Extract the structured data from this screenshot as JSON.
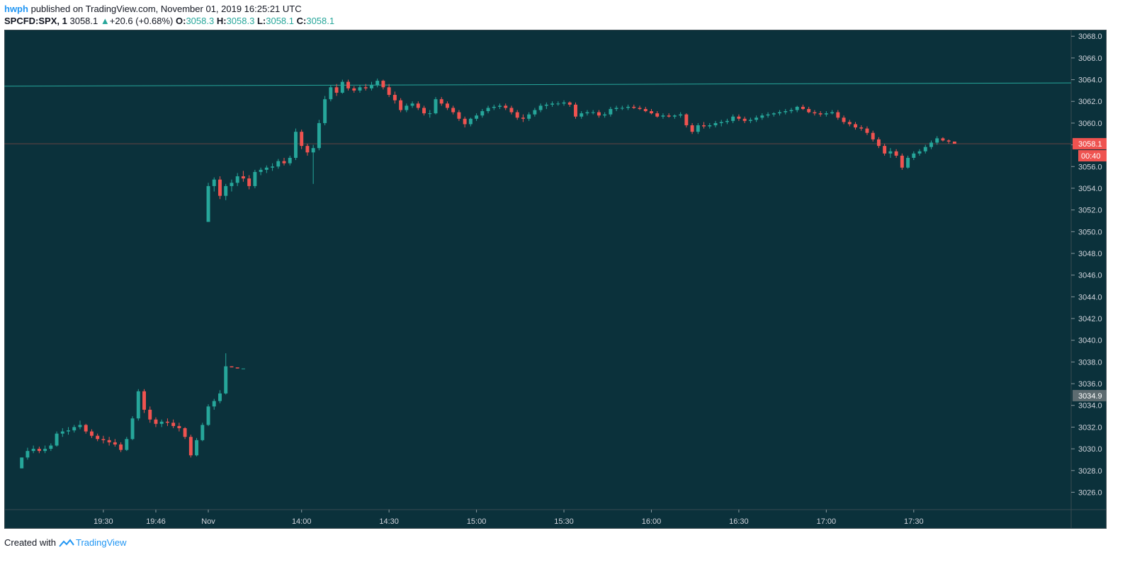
{
  "header": {
    "author": "hwph",
    "published_text": "published on TradingView.com, November 01, 2019 16:25:21 UTC",
    "symbol": "SPCFD:SPX, 1",
    "last": "3058.1",
    "change": "+20.6 (+0.68%)",
    "o_label": "O:",
    "o_value": "3058.3",
    "h_label": "H:",
    "h_value": "3058.3",
    "l_label": "L:",
    "l_value": "3058.1",
    "c_label": "C:",
    "c_value": "3058.1"
  },
  "footer": {
    "created_with": "Created with",
    "brand": "TradingView"
  },
  "colors": {
    "background": "#0b313b",
    "up": "#26a69a",
    "down": "#ef5350",
    "price_label": "#ef5350",
    "marker_label": "#5d6b70",
    "hline": "#26a69a"
  },
  "chart_data": {
    "type": "candlestick",
    "ylim": [
      3024.4,
      3068.6
    ],
    "xlim": [
      -3,
      180
    ],
    "y_ticks": [
      "3026.0",
      "3028.0",
      "3030.0",
      "3032.0",
      "3034.0",
      "3036.0",
      "3038.0",
      "3040.0",
      "3042.0",
      "3044.0",
      "3046.0",
      "3048.0",
      "3050.0",
      "3052.0",
      "3054.0",
      "3056.0",
      "3058.0",
      "3060.0",
      "3062.0",
      "3064.0",
      "3066.0",
      "3068.0"
    ],
    "x_ticks": [
      {
        "label": "19:30",
        "x": 14
      },
      {
        "label": "19:46",
        "x": 23
      },
      {
        "label": "Nov",
        "x": 32
      },
      {
        "label": "14:00",
        "x": 48
      },
      {
        "label": "14:30",
        "x": 63
      },
      {
        "label": "15:00",
        "x": 78
      },
      {
        "label": "15:30",
        "x": 93
      },
      {
        "label": "16:00",
        "x": 108
      },
      {
        "label": "16:30",
        "x": 123
      },
      {
        "label": "17:00",
        "x": 138
      },
      {
        "label": "17:30",
        "x": 153
      }
    ],
    "price_label": "3058.1",
    "countdown_label": "00:40",
    "marker_label": "3034.9",
    "hline_start": 3063.4,
    "hline_end": 3063.7,
    "session1_candles": [
      [
        3028.2,
        3029.2,
        3028.2,
        3029.2
      ],
      [
        3029.2,
        3030.1,
        3029.0,
        3029.8
      ],
      [
        3029.8,
        3030.3,
        3029.6,
        3030.0
      ],
      [
        3030.0,
        3030.2,
        3029.6,
        3029.8
      ],
      [
        3029.8,
        3030.3,
        3029.6,
        3030.0
      ],
      [
        3030.0,
        3030.5,
        3029.8,
        3030.3
      ],
      [
        3030.3,
        3031.6,
        3030.2,
        3031.4
      ],
      [
        3031.4,
        3031.9,
        3031.1,
        3031.6
      ],
      [
        3031.6,
        3032.0,
        3031.3,
        3031.7
      ],
      [
        3031.7,
        3032.2,
        3031.5,
        3032.0
      ],
      [
        3032.0,
        3032.6,
        3031.8,
        3032.2
      ],
      [
        3032.2,
        3032.3,
        3031.4,
        3031.6
      ],
      [
        3031.6,
        3031.8,
        3031.0,
        3031.2
      ],
      [
        3031.2,
        3031.4,
        3030.7,
        3030.9
      ],
      [
        3030.9,
        3031.2,
        3030.5,
        3030.8
      ],
      [
        3030.8,
        3031.1,
        3030.3,
        3030.6
      ],
      [
        3030.6,
        3030.9,
        3030.2,
        3030.4
      ],
      [
        3030.4,
        3030.6,
        3029.7,
        3029.9
      ],
      [
        3029.9,
        3031.1,
        3029.8,
        3030.9
      ],
      [
        3030.9,
        3033.0,
        3030.8,
        3032.8
      ],
      [
        3032.8,
        3035.5,
        3032.6,
        3035.3
      ],
      [
        3035.3,
        3035.5,
        3033.3,
        3033.6
      ],
      [
        3033.6,
        3033.9,
        3032.4,
        3032.7
      ],
      [
        3032.7,
        3032.9,
        3032.0,
        3032.3
      ],
      [
        3032.3,
        3032.7,
        3032.0,
        3032.5
      ],
      [
        3032.5,
        3032.8,
        3032.1,
        3032.4
      ],
      [
        3032.4,
        3032.7,
        3031.9,
        3032.1
      ],
      [
        3032.1,
        3032.4,
        3031.6,
        3031.9
      ],
      [
        3031.9,
        3032.0,
        3030.9,
        3031.1
      ],
      [
        3031.1,
        3031.3,
        3029.2,
        3029.4
      ],
      [
        3029.4,
        3031.0,
        3029.3,
        3030.8
      ],
      [
        3030.8,
        3032.4,
        3030.7,
        3032.2
      ],
      [
        3032.2,
        3034.1,
        3032.1,
        3033.9
      ],
      [
        3033.9,
        3034.6,
        3033.6,
        3034.4
      ],
      [
        3034.4,
        3035.4,
        3034.2,
        3035.1
      ],
      [
        3035.1,
        3038.8,
        3035.0,
        3037.6
      ],
      [
        3037.6,
        3037.6,
        3037.5,
        3037.5
      ],
      [
        3037.5,
        3037.5,
        3037.4,
        3037.4
      ],
      [
        3037.4,
        3037.4,
        3037.4,
        3037.4
      ]
    ],
    "session2_candles": [
      [
        3050.9,
        3054.5,
        3050.9,
        3054.2
      ],
      [
        3054.2,
        3055.0,
        3053.7,
        3054.8
      ],
      [
        3054.8,
        3055.1,
        3053.0,
        3053.3
      ],
      [
        3053.3,
        3054.4,
        3052.9,
        3054.2
      ],
      [
        3054.2,
        3054.8,
        3053.7,
        3054.5
      ],
      [
        3054.5,
        3055.4,
        3054.2,
        3055.1
      ],
      [
        3055.1,
        3055.6,
        3054.6,
        3054.9
      ],
      [
        3054.9,
        3055.2,
        3053.9,
        3054.2
      ],
      [
        3054.2,
        3055.7,
        3054.0,
        3055.5
      ],
      [
        3055.5,
        3055.9,
        3055.2,
        3055.7
      ],
      [
        3055.7,
        3056.1,
        3055.4,
        3055.9
      ],
      [
        3055.9,
        3056.3,
        3055.6,
        3056.0
      ],
      [
        3056.0,
        3056.7,
        3055.8,
        3056.5
      ],
      [
        3056.5,
        3056.8,
        3056.1,
        3056.3
      ],
      [
        3056.3,
        3057.0,
        3056.1,
        3056.8
      ],
      [
        3056.8,
        3059.5,
        3056.6,
        3059.2
      ],
      [
        3059.2,
        3059.4,
        3057.6,
        3057.9
      ],
      [
        3057.9,
        3058.1,
        3057.0,
        3057.3
      ],
      [
        3057.3,
        3058.0,
        3054.4,
        3057.7
      ],
      [
        3057.7,
        3060.3,
        3057.5,
        3060.0
      ],
      [
        3060.0,
        3062.5,
        3059.8,
        3062.2
      ],
      [
        3062.2,
        3063.5,
        3062.0,
        3063.3
      ],
      [
        3063.3,
        3063.6,
        3062.5,
        3062.8
      ],
      [
        3062.8,
        3064.0,
        3062.7,
        3063.8
      ],
      [
        3063.8,
        3064.0,
        3063.0,
        3063.2
      ],
      [
        3063.2,
        3063.4,
        3062.8,
        3063.0
      ],
      [
        3063.0,
        3063.5,
        3062.8,
        3063.3
      ],
      [
        3063.3,
        3063.6,
        3063.0,
        3063.2
      ],
      [
        3063.2,
        3063.8,
        3063.0,
        3063.5
      ],
      [
        3063.5,
        3064.1,
        3063.3,
        3063.9
      ],
      [
        3063.9,
        3064.0,
        3063.1,
        3063.3
      ],
      [
        3063.3,
        3063.6,
        3062.4,
        3062.6
      ],
      [
        3062.6,
        3062.9,
        3061.8,
        3062.1
      ],
      [
        3062.1,
        3062.3,
        3061.0,
        3061.2
      ],
      [
        3061.2,
        3061.8,
        3061.0,
        3061.6
      ],
      [
        3061.6,
        3062.0,
        3061.4,
        3061.8
      ],
      [
        3061.8,
        3062.0,
        3061.2,
        3061.4
      ],
      [
        3061.4,
        3061.6,
        3060.7,
        3060.9
      ],
      [
        3060.9,
        3061.2,
        3060.5,
        3060.9
      ],
      [
        3060.9,
        3062.4,
        3060.8,
        3062.2
      ],
      [
        3062.2,
        3062.4,
        3061.6,
        3061.8
      ],
      [
        3061.8,
        3062.0,
        3061.2,
        3061.4
      ],
      [
        3061.4,
        3061.6,
        3060.8,
        3061.0
      ],
      [
        3061.0,
        3061.2,
        3060.2,
        3060.4
      ],
      [
        3060.4,
        3060.6,
        3059.6,
        3059.9
      ],
      [
        3059.9,
        3060.5,
        3059.7,
        3060.4
      ],
      [
        3060.4,
        3060.9,
        3060.2,
        3060.7
      ],
      [
        3060.7,
        3061.3,
        3060.5,
        3061.1
      ],
      [
        3061.1,
        3061.6,
        3060.9,
        3061.4
      ],
      [
        3061.4,
        3061.7,
        3061.2,
        3061.5
      ],
      [
        3061.5,
        3061.8,
        3061.3,
        3061.6
      ],
      [
        3061.6,
        3061.8,
        3061.2,
        3061.4
      ],
      [
        3061.4,
        3061.6,
        3060.8,
        3061.0
      ],
      [
        3061.0,
        3061.2,
        3060.3,
        3060.5
      ],
      [
        3060.5,
        3060.8,
        3060.1,
        3060.4
      ],
      [
        3060.4,
        3061.0,
        3060.2,
        3060.8
      ],
      [
        3060.8,
        3061.4,
        3060.6,
        3061.2
      ],
      [
        3061.2,
        3061.8,
        3061.0,
        3061.6
      ],
      [
        3061.6,
        3061.9,
        3061.3,
        3061.7
      ],
      [
        3061.7,
        3062.0,
        3061.5,
        3061.8
      ],
      [
        3061.8,
        3062.0,
        3061.6,
        3061.8
      ],
      [
        3061.8,
        3062.1,
        3061.6,
        3061.9
      ],
      [
        3061.9,
        3062.0,
        3061.5,
        3061.7
      ],
      [
        3061.7,
        3061.9,
        3060.4,
        3060.6
      ],
      [
        3060.6,
        3061.1,
        3060.4,
        3060.9
      ],
      [
        3060.9,
        3061.2,
        3060.7,
        3061.0
      ],
      [
        3061.0,
        3061.2,
        3060.8,
        3061.0
      ],
      [
        3061.0,
        3061.2,
        3060.5,
        3060.7
      ],
      [
        3060.7,
        3061.0,
        3060.5,
        3060.8
      ],
      [
        3060.8,
        3061.5,
        3060.6,
        3061.3
      ],
      [
        3061.3,
        3061.6,
        3061.1,
        3061.4
      ],
      [
        3061.4,
        3061.6,
        3061.2,
        3061.4
      ],
      [
        3061.4,
        3061.7,
        3061.2,
        3061.5
      ],
      [
        3061.5,
        3061.7,
        3061.3,
        3061.4
      ],
      [
        3061.4,
        3061.6,
        3061.2,
        3061.3
      ],
      [
        3061.3,
        3061.5,
        3061.0,
        3061.1
      ],
      [
        3061.1,
        3061.3,
        3060.8,
        3060.9
      ],
      [
        3060.9,
        3061.1,
        3060.5,
        3060.6
      ],
      [
        3060.6,
        3060.9,
        3060.4,
        3060.7
      ],
      [
        3060.7,
        3060.9,
        3060.5,
        3060.6
      ],
      [
        3060.6,
        3060.8,
        3060.4,
        3060.7
      ],
      [
        3060.7,
        3061.0,
        3060.5,
        3060.8
      ],
      [
        3060.8,
        3060.9,
        3059.6,
        3059.8
      ],
      [
        3059.8,
        3060.0,
        3059.0,
        3059.2
      ],
      [
        3059.2,
        3060.0,
        3059.0,
        3059.8
      ],
      [
        3059.8,
        3060.1,
        3059.5,
        3059.7
      ],
      [
        3059.7,
        3060.0,
        3059.5,
        3059.8
      ],
      [
        3059.8,
        3060.2,
        3059.6,
        3060.0
      ],
      [
        3060.0,
        3060.3,
        3059.7,
        3060.1
      ],
      [
        3060.1,
        3060.4,
        3059.9,
        3060.2
      ],
      [
        3060.2,
        3060.8,
        3060.0,
        3060.6
      ],
      [
        3060.6,
        3060.8,
        3060.2,
        3060.4
      ],
      [
        3060.4,
        3060.6,
        3060.0,
        3060.2
      ],
      [
        3060.2,
        3060.5,
        3060.0,
        3060.3
      ],
      [
        3060.3,
        3060.7,
        3060.1,
        3060.5
      ],
      [
        3060.5,
        3060.9,
        3060.3,
        3060.7
      ],
      [
        3060.7,
        3061.0,
        3060.5,
        3060.8
      ],
      [
        3060.8,
        3061.0,
        3060.6,
        3060.9
      ],
      [
        3060.9,
        3061.2,
        3060.7,
        3061.0
      ],
      [
        3061.0,
        3061.3,
        3060.8,
        3061.1
      ],
      [
        3061.1,
        3061.4,
        3060.9,
        3061.2
      ],
      [
        3061.2,
        3061.6,
        3061.0,
        3061.5
      ],
      [
        3061.5,
        3061.7,
        3061.2,
        3061.3
      ],
      [
        3061.3,
        3061.5,
        3060.9,
        3061.0
      ],
      [
        3061.0,
        3061.2,
        3060.7,
        3060.9
      ],
      [
        3060.9,
        3061.1,
        3060.6,
        3060.8
      ],
      [
        3060.8,
        3061.1,
        3060.6,
        3060.9
      ],
      [
        3060.9,
        3061.2,
        3060.8,
        3061.0
      ],
      [
        3061.0,
        3061.2,
        3060.3,
        3060.5
      ],
      [
        3060.5,
        3060.7,
        3059.9,
        3060.1
      ],
      [
        3060.1,
        3060.3,
        3059.7,
        3059.9
      ],
      [
        3059.9,
        3060.1,
        3059.4,
        3059.6
      ],
      [
        3059.6,
        3059.8,
        3059.3,
        3059.5
      ],
      [
        3059.5,
        3059.7,
        3058.9,
        3059.1
      ],
      [
        3059.1,
        3059.3,
        3058.3,
        3058.5
      ],
      [
        3058.5,
        3058.7,
        3057.7,
        3057.9
      ],
      [
        3057.9,
        3058.1,
        3057.0,
        3057.2
      ],
      [
        3057.2,
        3057.7,
        3056.8,
        3057.4
      ],
      [
        3057.4,
        3057.6,
        3056.8,
        3057.0
      ],
      [
        3057.0,
        3057.2,
        3055.7,
        3055.9
      ],
      [
        3055.9,
        3057.0,
        3055.8,
        3056.8
      ],
      [
        3056.8,
        3057.4,
        3056.6,
        3057.2
      ],
      [
        3057.2,
        3057.6,
        3057.0,
        3057.4
      ],
      [
        3057.4,
        3058.0,
        3057.2,
        3057.8
      ],
      [
        3057.8,
        3058.4,
        3057.6,
        3058.2
      ],
      [
        3058.2,
        3058.8,
        3058.0,
        3058.6
      ],
      [
        3058.6,
        3058.7,
        3058.3,
        3058.4
      ],
      [
        3058.4,
        3058.5,
        3058.1,
        3058.3
      ],
      [
        3058.3,
        3058.3,
        3058.1,
        3058.1
      ]
    ]
  }
}
